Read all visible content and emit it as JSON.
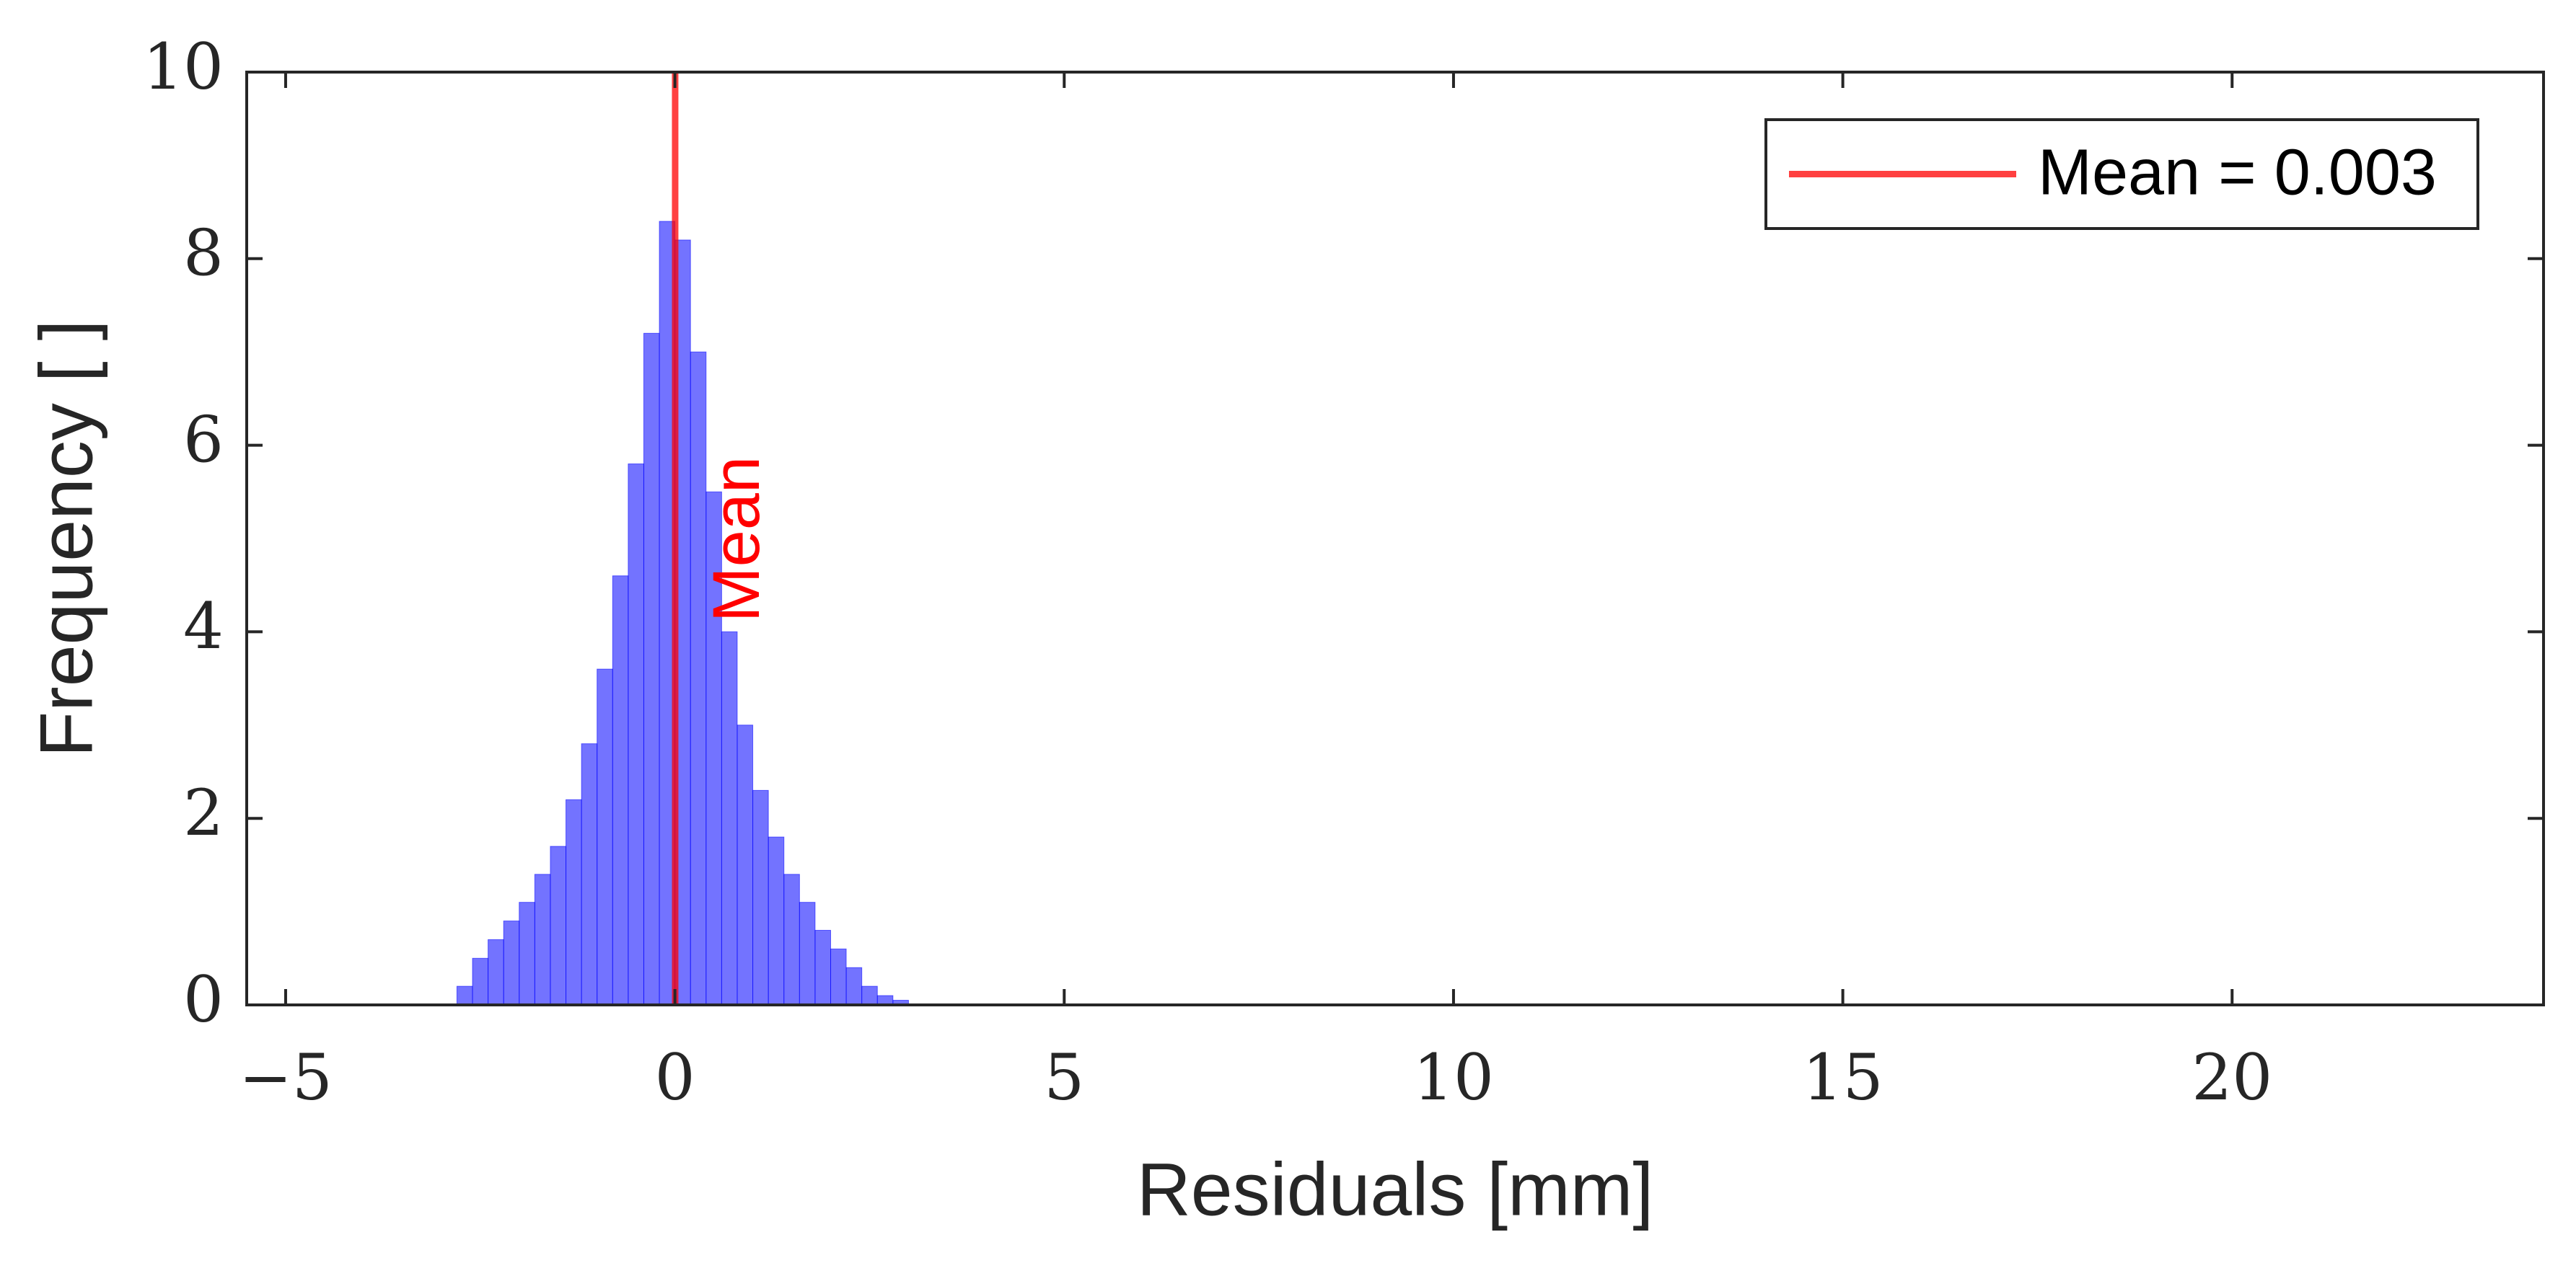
{
  "chart_data": {
    "type": "histogram",
    "xlabel": "Residuals [mm]",
    "ylabel": "Frequency [ ]",
    "bins": [
      -2.8,
      -2.6,
      -2.4,
      -2.2,
      -2.0,
      -1.8,
      -1.6,
      -1.4,
      -1.2,
      -1.0,
      -0.8,
      -0.6,
      -0.4,
      -0.2,
      0.0,
      0.2,
      0.4,
      0.6,
      0.8,
      1.0,
      1.2,
      1.4,
      1.6,
      1.8,
      2.0,
      2.2,
      2.4,
      2.6,
      2.8,
      3.0
    ],
    "counts": [
      0.2,
      0.5,
      0.7,
      0.9,
      1.1,
      1.4,
      1.7,
      2.2,
      2.8,
      3.6,
      4.6,
      5.8,
      7.2,
      8.4,
      8.2,
      7.0,
      5.5,
      4.0,
      3.0,
      2.3,
      1.8,
      1.4,
      1.1,
      0.8,
      0.6,
      0.4,
      0.2,
      0.1,
      0.05
    ],
    "color": "#0000ff",
    "mean_line": {
      "value": 0.003,
      "label": "Mean = 0.003",
      "annotation": "Mean",
      "color": "#ff0000"
    },
    "xlim": [
      -5.5,
      24
    ],
    "ylim": [
      0,
      10
    ],
    "xticks": [
      {
        "value": -5,
        "label": "−5"
      },
      0,
      5,
      10,
      15,
      20
    ],
    "yticks": [
      0,
      2,
      4,
      6,
      8,
      10
    ],
    "legend": "upper right"
  }
}
